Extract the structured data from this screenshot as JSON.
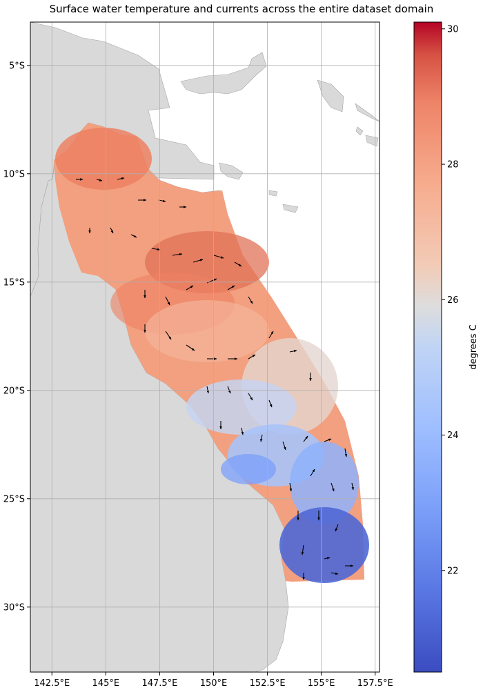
{
  "title": "Surface water temperature and currents across the entire dataset domain",
  "map": {
    "lon_range": [
      141.5,
      157.7
    ],
    "lat_range": [
      -33.0,
      -3.0
    ],
    "lon_ticks": [
      {
        "value": 142.5,
        "label": "142.5°E"
      },
      {
        "value": 145.0,
        "label": "145°E"
      },
      {
        "value": 147.5,
        "label": "147.5°E"
      },
      {
        "value": 150.0,
        "label": "150°E"
      },
      {
        "value": 152.5,
        "label": "152.5°E"
      },
      {
        "value": 155.0,
        "label": "155°E"
      },
      {
        "value": 157.5,
        "label": "157.5°E"
      }
    ],
    "lat_ticks": [
      {
        "value": -5,
        "label": "5°S"
      },
      {
        "value": -10,
        "label": "10°S"
      },
      {
        "value": -15,
        "label": "15°S"
      },
      {
        "value": -20,
        "label": "20°S"
      },
      {
        "value": -25,
        "label": "25°S"
      },
      {
        "value": -30,
        "label": "30°S"
      }
    ],
    "grid": true,
    "land_color": "#d9d9d9",
    "land_edge_color": "#a6a6a6",
    "arrow_color": "#000000"
  },
  "colorbar": {
    "label": "degrees C",
    "range": [
      20.5,
      30.1
    ],
    "ticks": [
      {
        "value": 22,
        "label": "22"
      },
      {
        "value": 24,
        "label": "24"
      },
      {
        "value": 26,
        "label": "26"
      },
      {
        "value": 28,
        "label": "28"
      },
      {
        "value": 30,
        "label": "30"
      }
    ],
    "colormap": "coolwarm",
    "cmap_low": "#3b4cc0",
    "cmap_mid": "#dddddd",
    "cmap_high": "#b40426"
  }
}
